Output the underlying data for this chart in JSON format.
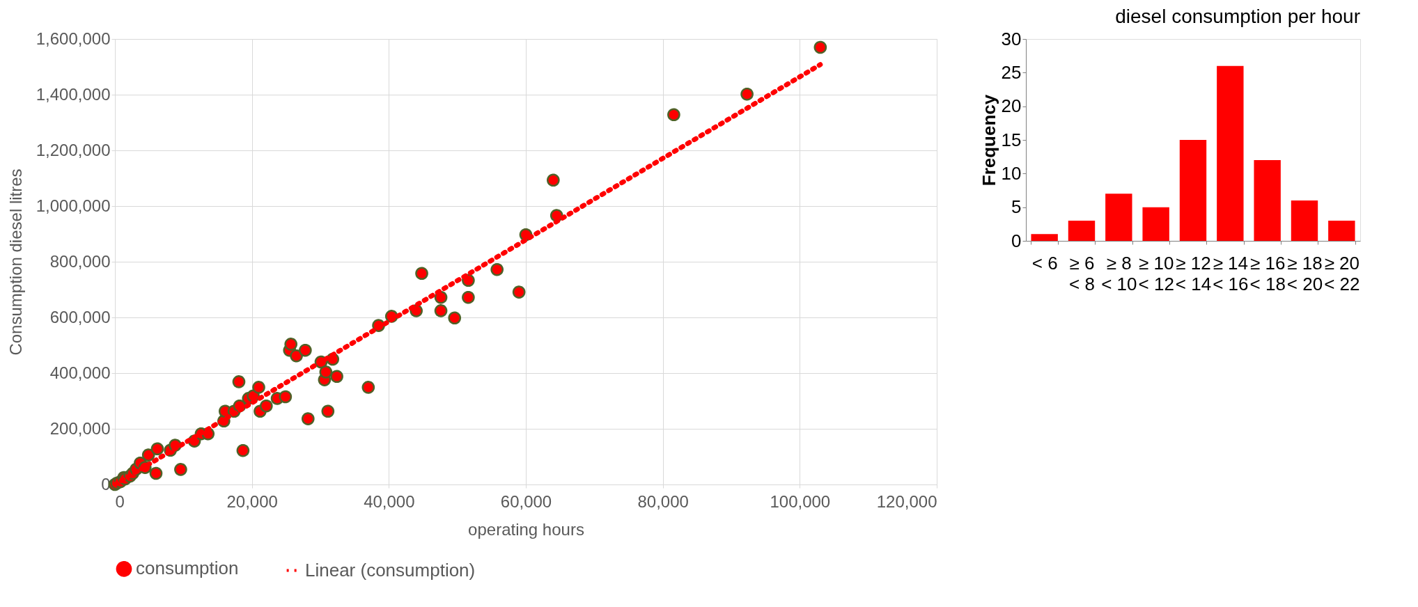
{
  "chart_data": [
    {
      "type": "scatter",
      "xlabel": "operating hours",
      "ylabel": "Consumption diesel litres",
      "xlim": [
        0,
        120000
      ],
      "xticks": [
        0,
        {
          "value": 20000,
          "label": "20,000"
        },
        {
          "value": 40000,
          "label": "40,000"
        },
        {
          "value": 60000,
          "label": "60,000"
        },
        {
          "value": 80000,
          "label": "80,000"
        },
        {
          "value": 100000,
          "label": "100,000"
        },
        {
          "value": 120000,
          "label": "120,000"
        }
      ],
      "ylim": [
        0,
        1600000
      ],
      "yticks": [
        0,
        {
          "value": 200000,
          "label": "200,000"
        },
        {
          "value": 400000,
          "label": "400,000"
        },
        {
          "value": 600000,
          "label": "600,000"
        },
        {
          "value": 800000,
          "label": "800,000"
        },
        {
          "value": 1000000,
          "label": "1,000,000"
        },
        {
          "value": 1200000,
          "label": "1,200,000"
        },
        {
          "value": 1400000,
          "label": "1,400,000"
        },
        {
          "value": 1600000,
          "label": "1,600,000"
        }
      ],
      "grid": true,
      "legend": "bottom",
      "series": [
        {
          "name": "consumption",
          "type": "scatter",
          "color": "#ff0000",
          "marker": "circle",
          "x": [
            0,
            300,
            800,
            1300,
            1500,
            2200,
            2600,
            3100,
            3700,
            4400,
            4900,
            6200,
            6000,
            8100,
            8800,
            9600,
            11600,
            12600,
            13600,
            15900,
            16100,
            17400,
            18100,
            18200,
            18700,
            19500,
            20200,
            21000,
            21200,
            22100,
            23700,
            24900,
            25500,
            25700,
            26500,
            27800,
            28200,
            30100,
            30600,
            30800,
            31100,
            31800,
            32400,
            37000,
            38500,
            40400,
            44000,
            44800,
            47600,
            47600,
            49600,
            51600,
            51600,
            55800,
            59000,
            60000,
            64000,
            64500,
            81600,
            92300,
            103000
          ],
          "values": [
            0,
            5000,
            10000,
            25000,
            20000,
            30000,
            40000,
            55000,
            77000,
            61000,
            106000,
            128000,
            40000,
            123000,
            141000,
            54000,
            156000,
            182000,
            182000,
            228000,
            263000,
            263000,
            369000,
            282000,
            122000,
            309000,
            318000,
            349000,
            263000,
            282000,
            309000,
            315000,
            482000,
            504000,
            462000,
            482000,
            236000,
            440000,
            376000,
            404000,
            263000,
            450000,
            388000,
            349000,
            571000,
            604000,
            624000,
            758000,
            672000,
            624000,
            598000,
            733000,
            672000,
            772000,
            691000,
            897000,
            1093000,
            966000,
            1328000,
            1402000,
            1570000
          ]
        },
        {
          "name": "Linear (consumption)",
          "type": "line",
          "color": "#ff0000",
          "line_style": "dotted",
          "x": [
            0,
            103000
          ],
          "values": [
            0,
            1508000
          ]
        }
      ]
    },
    {
      "type": "bar",
      "title": "diesel consumption per hour",
      "ylabel": "Frequency",
      "categories": [
        "< 6",
        "≥ 6\n< 8",
        "≥ 8\n< 10",
        "≥ 10\n< 12",
        "≥ 12\n< 14",
        "≥ 14\n< 16",
        "≥ 16\n< 18",
        "≥ 18\n< 20",
        "≥ 20\n< 22"
      ],
      "values": [
        1,
        3,
        7,
        5,
        15,
        26,
        12,
        6,
        3
      ],
      "color": "#ff0000",
      "ylim": [
        0,
        30
      ],
      "yticks": [
        0,
        5,
        10,
        15,
        20,
        25,
        30
      ]
    }
  ]
}
